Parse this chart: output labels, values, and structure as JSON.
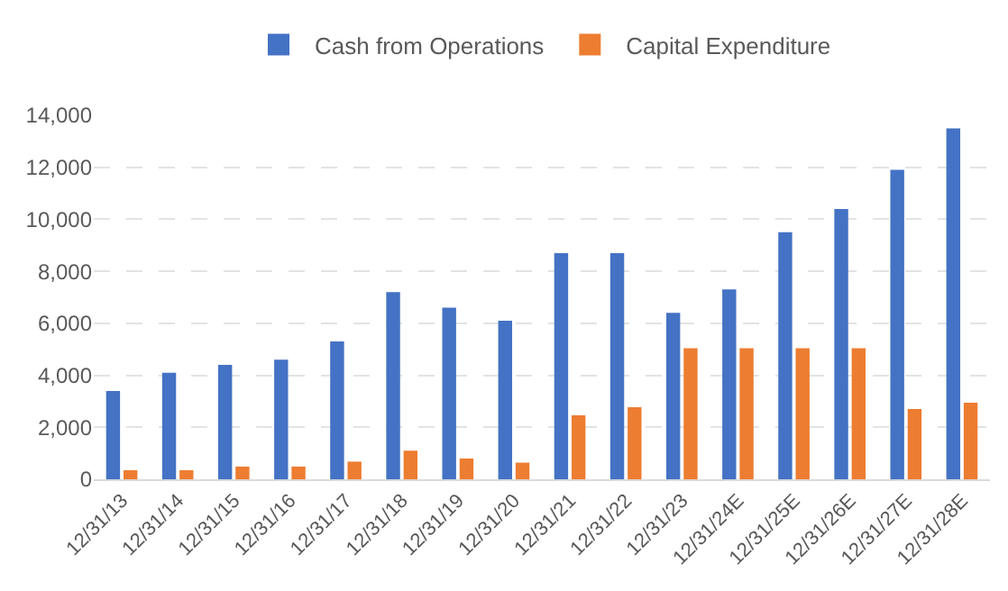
{
  "chart_data": {
    "type": "bar",
    "categories": [
      "12/31/13",
      "12/31/14",
      "12/31/15",
      "12/31/16",
      "12/31/17",
      "12/31/18",
      "12/31/19",
      "12/31/20",
      "12/31/21",
      "12/31/22",
      "12/31/23",
      "12/31/24E",
      "12/31/25E",
      "12/31/26E",
      "12/31/27E",
      "12/31/28E"
    ],
    "series": [
      {
        "name": "Cash from Operations",
        "color": "#4472c4",
        "values": [
          3400,
          4100,
          4400,
          4600,
          5300,
          7200,
          6600,
          6100,
          8700,
          8700,
          6400,
          7300,
          9500,
          10400,
          11900,
          13500
        ]
      },
      {
        "name": "Capital Expenditure",
        "color": "#ed7d31",
        "values": [
          350,
          350,
          490,
          490,
          680,
          1100,
          800,
          640,
          2460,
          2770,
          5040,
          5040,
          5040,
          5040,
          2700,
          2950
        ]
      }
    ],
    "ylim": [
      0,
      14000
    ],
    "yticks": [
      {
        "value": 0,
        "label": "0"
      },
      {
        "value": 2000,
        "label": "2,000"
      },
      {
        "value": 4000,
        "label": "4,000"
      },
      {
        "value": 6000,
        "label": "6,000"
      },
      {
        "value": 8000,
        "label": "8,000"
      },
      {
        "value": 10000,
        "label": "10,000"
      },
      {
        "value": 12000,
        "label": "12,000"
      },
      {
        "value": 14000,
        "label": "14,000"
      }
    ],
    "grid": "y",
    "legend": "top"
  }
}
